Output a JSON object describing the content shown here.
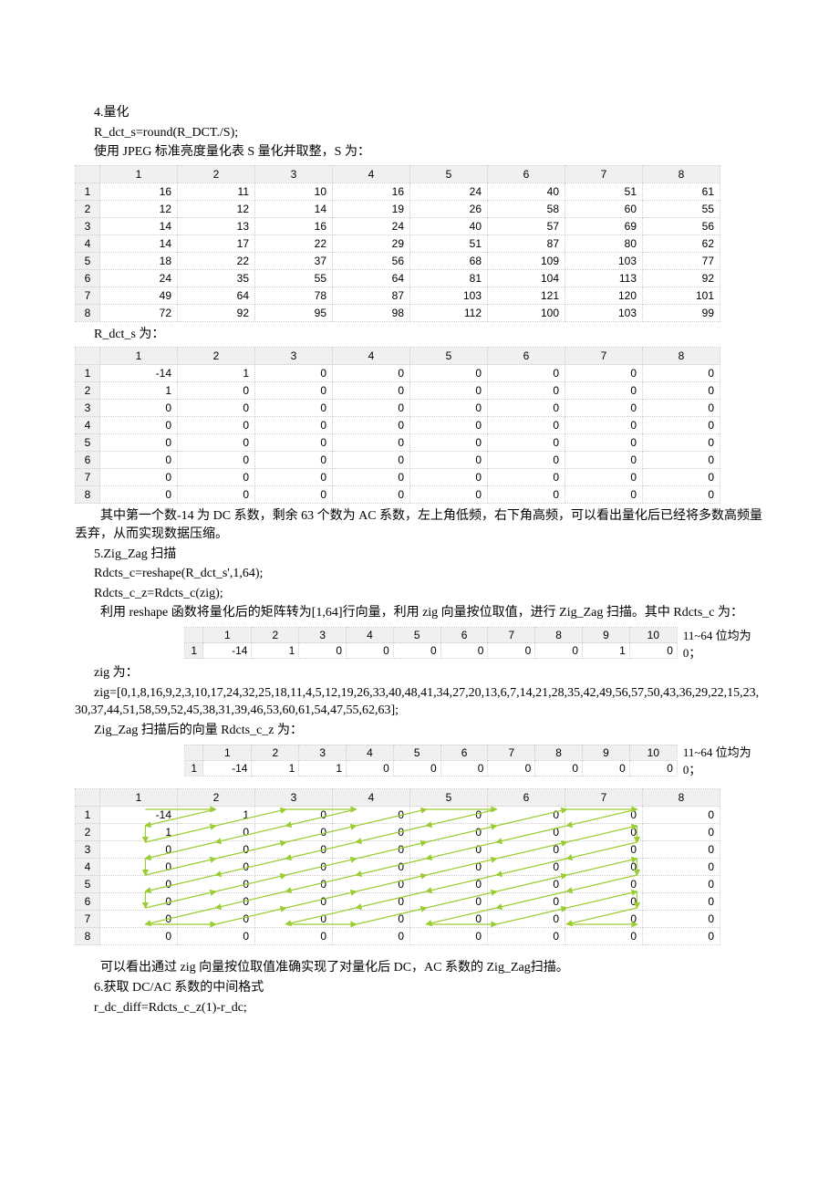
{
  "sections": {
    "s4_title": "4.量化",
    "s4_code": "R_dct_s=round(R_DCT./S);",
    "s4_desc": "使用 JPEG 标准亮度量化表 S 量化并取整，S 为：",
    "r_dct_s_label": "R_dct_s 为：",
    "s4_result_desc1": "其中第一个数-14 为 DC 系数，剩余 63 个数为 AC 系数，左上角低频，右下角高频，可以看出量化后已经将多数高频量丢弃，从而实现数据压缩。",
    "s5_title": "5.Zig_Zag 扫描",
    "s5_code1": "Rdcts_c=reshape(R_dct_s',1,64);",
    "s5_code2": "Rdcts_c_z=Rdcts_c(zig);",
    "s5_desc1": "利用 reshape 函数将量化后的矩阵转为[1,64]行向量，利用 zig 向量按位取值，进行 Zig_Zag 扫描。其中 Rdcts_c 为：",
    "note_11_64": "11~64 位均为 0；",
    "zig_label": "zig 为：",
    "zig_vector": "zig=[0,1,8,16,9,2,3,10,17,24,32,25,18,11,4,5,12,19,26,33,40,48,41,34,27,20,13,6,7,14,21,28,35,42,49,56,57,50,43,36,29,22,15,23,30,37,44,51,58,59,52,45,38,31,39,46,53,60,61,54,47,55,62,63];",
    "s5_desc2": "Zig_Zag 扫描后的向量 Rdcts_c_z 为：",
    "s5_result": "可以看出通过 zig 向量按位取值准确实现了对量化后 DC，AC 系数的 Zig_Zag扫描。",
    "s6_title": "6.获取 DC/AC 系数的中间格式",
    "s6_code": "r_dc_diff=Rdcts_c_z(1)-r_dc;"
  },
  "table_S": {
    "cols": [
      "1",
      "2",
      "3",
      "4",
      "5",
      "6",
      "7",
      "8"
    ],
    "rows": [
      [
        "1",
        "16",
        "11",
        "10",
        "16",
        "24",
        "40",
        "51",
        "61"
      ],
      [
        "2",
        "12",
        "12",
        "14",
        "19",
        "26",
        "58",
        "60",
        "55"
      ],
      [
        "3",
        "14",
        "13",
        "16",
        "24",
        "40",
        "57",
        "69",
        "56"
      ],
      [
        "4",
        "14",
        "17",
        "22",
        "29",
        "51",
        "87",
        "80",
        "62"
      ],
      [
        "5",
        "18",
        "22",
        "37",
        "56",
        "68",
        "109",
        "103",
        "77"
      ],
      [
        "6",
        "24",
        "35",
        "55",
        "64",
        "81",
        "104",
        "113",
        "92"
      ],
      [
        "7",
        "49",
        "64",
        "78",
        "87",
        "103",
        "121",
        "120",
        "101"
      ],
      [
        "8",
        "72",
        "92",
        "95",
        "98",
        "112",
        "100",
        "103",
        "99"
      ]
    ]
  },
  "table_R_dct_s": {
    "cols": [
      "1",
      "2",
      "3",
      "4",
      "5",
      "6",
      "7",
      "8"
    ],
    "rows": [
      [
        "1",
        "-14",
        "1",
        "0",
        "0",
        "0",
        "0",
        "0",
        "0"
      ],
      [
        "2",
        "1",
        "0",
        "0",
        "0",
        "0",
        "0",
        "0",
        "0"
      ],
      [
        "3",
        "0",
        "0",
        "0",
        "0",
        "0",
        "0",
        "0",
        "0"
      ],
      [
        "4",
        "0",
        "0",
        "0",
        "0",
        "0",
        "0",
        "0",
        "0"
      ],
      [
        "5",
        "0",
        "0",
        "0",
        "0",
        "0",
        "0",
        "0",
        "0"
      ],
      [
        "6",
        "0",
        "0",
        "0",
        "0",
        "0",
        "0",
        "0",
        "0"
      ],
      [
        "7",
        "0",
        "0",
        "0",
        "0",
        "0",
        "0",
        "0",
        "0"
      ],
      [
        "8",
        "0",
        "0",
        "0",
        "0",
        "0",
        "0",
        "0",
        "0"
      ]
    ]
  },
  "row_Rdcts_c": {
    "cols": [
      "1",
      "2",
      "3",
      "4",
      "5",
      "6",
      "7",
      "8",
      "9",
      "10"
    ],
    "vals": [
      "-14",
      "1",
      "0",
      "0",
      "0",
      "0",
      "0",
      "0",
      "1",
      "0"
    ],
    "rowhead": "1"
  },
  "row_Rdcts_c_z": {
    "cols": [
      "1",
      "2",
      "3",
      "4",
      "5",
      "6",
      "7",
      "8",
      "9",
      "10"
    ],
    "vals": [
      "-14",
      "1",
      "1",
      "0",
      "0",
      "0",
      "0",
      "0",
      "0",
      "0"
    ],
    "rowhead": "1"
  },
  "table_zigzag": {
    "cols": [
      "1",
      "2",
      "3",
      "4",
      "5",
      "6",
      "7",
      "8"
    ],
    "rows": [
      [
        "1",
        "-14",
        "1",
        "0",
        "0",
        "0",
        "0",
        "0",
        "0"
      ],
      [
        "2",
        "1",
        "0",
        "0",
        "0",
        "0",
        "0",
        "0",
        "0"
      ],
      [
        "3",
        "0",
        "0",
        "0",
        "0",
        "0",
        "0",
        "0",
        "0"
      ],
      [
        "4",
        "0",
        "0",
        "0",
        "0",
        "0",
        "0",
        "0",
        "0"
      ],
      [
        "5",
        "0",
        "0",
        "0",
        "0",
        "0",
        "0",
        "0",
        "0"
      ],
      [
        "6",
        "0",
        "0",
        "0",
        "0",
        "0",
        "0",
        "0",
        "0"
      ],
      [
        "7",
        "0",
        "0",
        "0",
        "0",
        "0",
        "0",
        "0",
        "0"
      ],
      [
        "8",
        "0",
        "0",
        "0",
        "0",
        "0",
        "0",
        "0",
        "0"
      ]
    ],
    "arrow_color": "#9acd32"
  }
}
